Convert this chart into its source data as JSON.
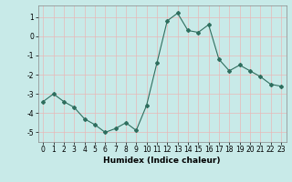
{
  "x": [
    0,
    1,
    2,
    3,
    4,
    5,
    6,
    7,
    8,
    9,
    10,
    11,
    12,
    13,
    14,
    15,
    16,
    17,
    18,
    19,
    20,
    21,
    22,
    23
  ],
  "y": [
    -3.4,
    -3.0,
    -3.4,
    -3.7,
    -4.3,
    -4.6,
    -5.0,
    -4.8,
    -4.5,
    -4.9,
    -3.6,
    -1.4,
    0.8,
    1.2,
    0.3,
    0.2,
    0.6,
    -1.2,
    -1.8,
    -1.5,
    -1.8,
    -2.1,
    -2.5,
    -2.6
  ],
  "line_color": "#2e6e5e",
  "marker": "D",
  "marker_size": 2.0,
  "background_color": "#c8eae8",
  "grid_color": "#e8b8b8",
  "xlabel": "Humidex (Indice chaleur)",
  "xlim": [
    -0.5,
    23.5
  ],
  "ylim": [
    -5.5,
    1.6
  ],
  "yticks": [
    -5,
    -4,
    -3,
    -2,
    -1,
    0,
    1
  ],
  "xticks": [
    0,
    1,
    2,
    3,
    4,
    5,
    6,
    7,
    8,
    9,
    10,
    11,
    12,
    13,
    14,
    15,
    16,
    17,
    18,
    19,
    20,
    21,
    22,
    23
  ],
  "xtick_labels": [
    "0",
    "1",
    "2",
    "3",
    "4",
    "5",
    "6",
    "7",
    "8",
    "9",
    "10",
    "11",
    "12",
    "13",
    "14",
    "15",
    "16",
    "17",
    "18",
    "19",
    "20",
    "21",
    "22",
    "23"
  ],
  "ytick_labels": [
    "-5",
    "-4",
    "-3",
    "-2",
    "-1",
    "0",
    "1"
  ],
  "tick_fontsize": 5.5,
  "xlabel_fontsize": 6.5,
  "linewidth": 0.8
}
